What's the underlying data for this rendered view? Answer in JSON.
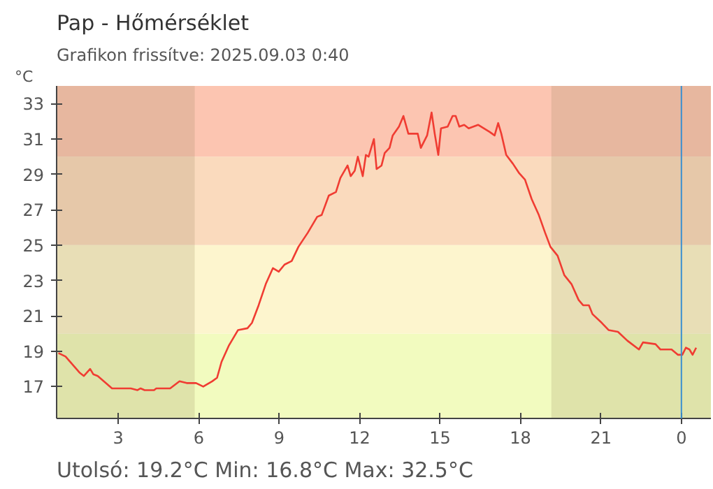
{
  "chart_data": {
    "type": "line",
    "title": "Pap - Hőmérséklet",
    "subtitle": "Grafikon frissítve: 2025.09.03 0:40",
    "ylabel": "°C",
    "annotations": [
      "Utolsó: 19.2°C  Min: 16.8°C  Max: 32.5°C"
    ],
    "xlim": [
      "2025-09-02T00:42",
      "2025-09-03T01:06"
    ],
    "xticks": [
      {
        "value": "2025-09-02T03:00",
        "label": "3"
      },
      {
        "value": "2025-09-02T06:00",
        "label": "6"
      },
      {
        "value": "2025-09-02T09:00",
        "label": "9"
      },
      {
        "value": "2025-09-02T12:00",
        "label": "12"
      },
      {
        "value": "2025-09-02T15:00",
        "label": "15"
      },
      {
        "value": "2025-09-02T18:00",
        "label": "18"
      },
      {
        "value": "2025-09-02T21:00",
        "label": "21"
      },
      {
        "value": "2025-09-03T00:00",
        "label": "0"
      }
    ],
    "ylim": [
      15.2,
      34
    ],
    "yticks": [
      17,
      19,
      21,
      23,
      25,
      27,
      29,
      31,
      33
    ],
    "grid": false,
    "bands": [
      {
        "axis": "y",
        "from": 15.2,
        "to": 20,
        "color": "#f2fbbf"
      },
      {
        "axis": "y",
        "from": 20,
        "to": 25,
        "color": "#fdf5ce"
      },
      {
        "axis": "y",
        "from": 25,
        "to": 30,
        "color": "#fadabd"
      },
      {
        "axis": "y",
        "from": 30,
        "to": 34,
        "color": "#fcc5b1"
      },
      {
        "axis": "x",
        "from": "2025-09-02T00:42",
        "to": "2025-09-02T05:51",
        "color": "#8a7a50"
      },
      {
        "axis": "x",
        "from": "2025-09-02T19:09",
        "to": "2025-09-03T01:06",
        "color": "#8a7a50"
      }
    ],
    "ref_lines": [
      {
        "axis": "x",
        "value": "2025-09-03T00:00",
        "color": "#3a8fd0"
      }
    ],
    "series": [
      {
        "color": "#f03c32",
        "x": [
          "2025-09-02T00:46",
          "2025-09-02T01:02",
          "2025-09-02T01:33",
          "2025-09-02T01:43",
          "2025-09-02T01:57",
          "2025-09-02T02:04",
          "2025-09-02T02:14",
          "2025-09-02T02:46",
          "2025-09-02T03:28",
          "2025-09-02T03:43",
          "2025-09-02T03:50",
          "2025-09-02T03:59",
          "2025-09-02T04:20",
          "2025-09-02T04:25",
          "2025-09-02T04:56",
          "2025-09-02T05:17",
          "2025-09-02T05:33",
          "2025-09-02T05:54",
          "2025-09-02T06:10",
          "2025-09-02T06:30",
          "2025-09-02T06:41",
          "2025-09-02T06:51",
          "2025-09-02T07:07",
          "2025-09-02T07:28",
          "2025-09-02T07:49",
          "2025-09-02T07:59",
          "2025-09-02T08:14",
          "2025-09-02T08:30",
          "2025-09-02T08:46",
          "2025-09-02T08:59",
          "2025-09-02T09:12",
          "2025-09-02T09:28",
          "2025-09-02T09:43",
          "2025-09-02T10:04",
          "2025-09-02T10:25",
          "2025-09-02T10:35",
          "2025-09-02T10:51",
          "2025-09-02T11:07",
          "2025-09-02T11:17",
          "2025-09-02T11:33",
          "2025-09-02T11:40",
          "2025-09-02T11:49",
          "2025-09-02T11:56",
          "2025-09-02T12:07",
          "2025-09-02T12:14",
          "2025-09-02T12:20",
          "2025-09-02T12:32",
          "2025-09-02T12:38",
          "2025-09-02T12:49",
          "2025-09-02T12:56",
          "2025-09-02T13:07",
          "2025-09-02T13:14",
          "2025-09-02T13:28",
          "2025-09-02T13:38",
          "2025-09-02T13:49",
          "2025-09-02T14:10",
          "2025-09-02T14:17",
          "2025-09-02T14:31",
          "2025-09-02T14:41",
          "2025-09-02T14:48",
          "2025-09-02T14:56",
          "2025-09-02T15:02",
          "2025-09-02T15:17",
          "2025-09-02T15:28",
          "2025-09-02T15:35",
          "2025-09-02T15:43",
          "2025-09-02T15:54",
          "2025-09-02T16:04",
          "2025-09-02T16:25",
          "2025-09-02T16:51",
          "2025-09-02T17:02",
          "2025-09-02T17:10",
          "2025-09-02T17:17",
          "2025-09-02T17:28",
          "2025-09-02T17:43",
          "2025-09-02T17:56",
          "2025-09-02T18:10",
          "2025-09-02T18:25",
          "2025-09-02T18:41",
          "2025-09-02T18:55",
          "2025-09-02T19:07",
          "2025-09-02T19:23",
          "2025-09-02T19:38",
          "2025-09-02T19:54",
          "2025-09-02T20:10",
          "2025-09-02T20:20",
          "2025-09-02T20:33",
          "2025-09-02T20:41",
          "2025-09-02T21:02",
          "2025-09-02T21:17",
          "2025-09-02T21:38",
          "2025-09-02T21:59",
          "2025-09-02T22:25",
          "2025-09-02T22:34",
          "2025-09-02T23:02",
          "2025-09-02T23:13",
          "2025-09-02T23:38",
          "2025-09-02T23:52",
          "2025-09-03T00:02",
          "2025-09-03T00:10",
          "2025-09-03T00:18",
          "2025-09-03T00:25",
          "2025-09-03T00:33"
        ],
        "values": [
          18.9,
          18.7,
          17.8,
          17.6,
          18.0,
          17.7,
          17.6,
          16.9,
          16.9,
          16.8,
          16.9,
          16.8,
          16.8,
          16.9,
          16.9,
          17.3,
          17.2,
          17.2,
          17.0,
          17.3,
          17.5,
          18.4,
          19.3,
          20.2,
          20.3,
          20.6,
          21.6,
          22.8,
          23.7,
          23.5,
          23.9,
          24.1,
          24.9,
          25.7,
          26.6,
          26.7,
          27.8,
          28.0,
          28.8,
          29.5,
          28.9,
          29.2,
          30.0,
          28.9,
          30.1,
          30.0,
          31.0,
          29.3,
          29.5,
          30.2,
          30.5,
          31.2,
          31.7,
          32.3,
          31.3,
          31.3,
          30.5,
          31.2,
          32.5,
          31.3,
          30.1,
          31.6,
          31.7,
          32.3,
          32.3,
          31.7,
          31.8,
          31.6,
          31.8,
          31.4,
          31.2,
          31.9,
          31.3,
          30.1,
          29.6,
          29.1,
          28.7,
          27.6,
          26.7,
          25.7,
          24.9,
          24.4,
          23.3,
          22.8,
          21.9,
          21.6,
          21.6,
          21.1,
          20.6,
          20.2,
          20.1,
          19.6,
          19.1,
          19.5,
          19.4,
          19.1,
          19.1,
          18.8,
          18.8,
          19.2,
          19.1,
          18.8,
          19.2
        ]
      }
    ]
  }
}
